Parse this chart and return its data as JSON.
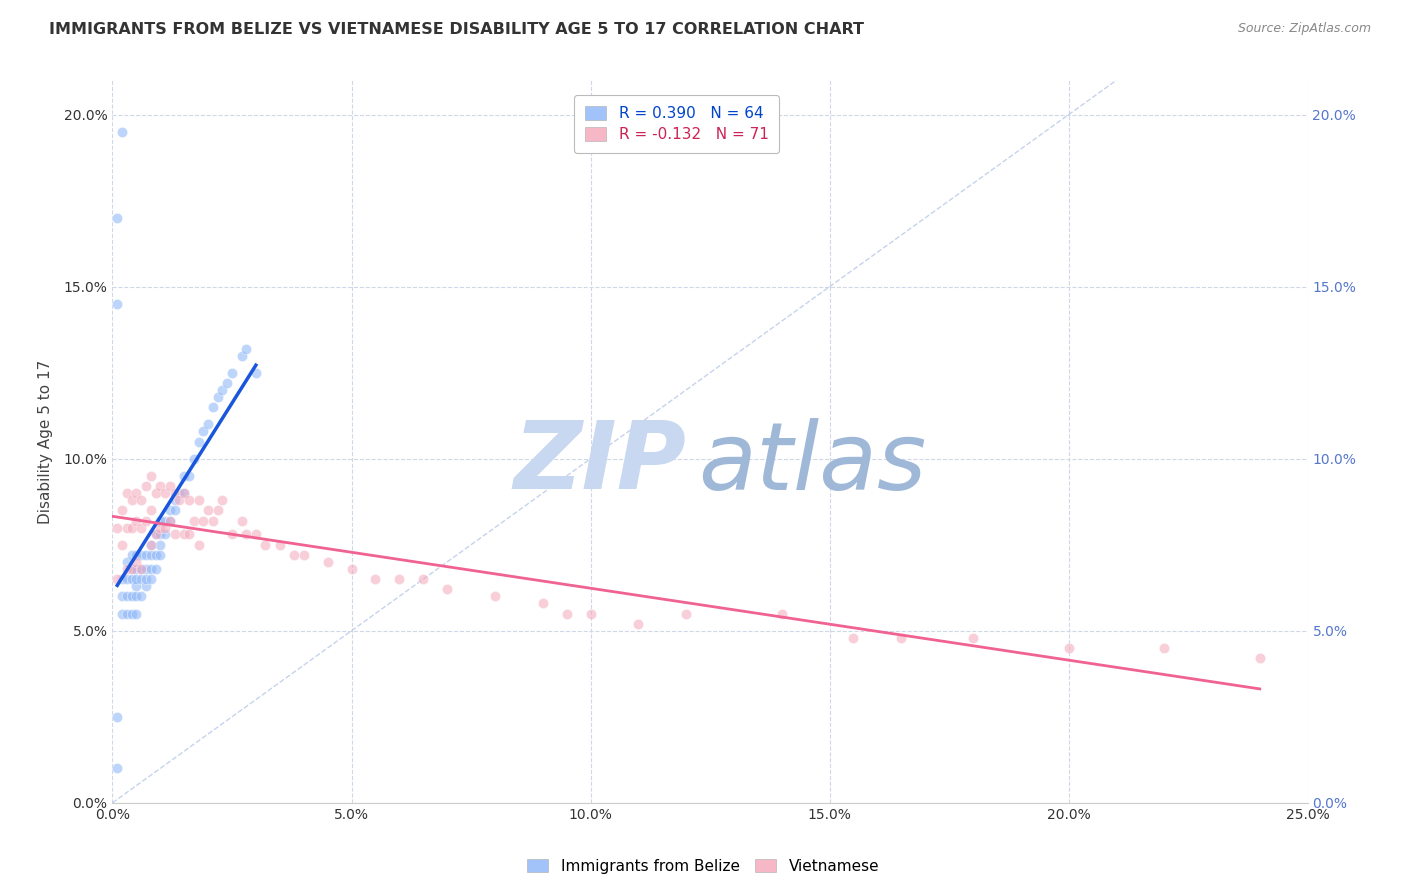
{
  "title": "IMMIGRANTS FROM BELIZE VS VIETNAMESE DISABILITY AGE 5 TO 17 CORRELATION CHART",
  "source": "Source: ZipAtlas.com",
  "ylabel": "Disability Age 5 to 17",
  "xlim": [
    0.0,
    0.25
  ],
  "ylim": [
    0.0,
    0.21
  ],
  "belize_R": 0.39,
  "belize_N": 64,
  "vietnamese_R": -0.132,
  "vietnamese_N": 71,
  "belize_color": "#8ab4f8",
  "vietnamese_color": "#f4a7b9",
  "belize_regression_color": "#1a56db",
  "vietnamese_regression_color": "#f06292",
  "diagonal_color": "#b8c8e8",
  "watermark_zip_color": "#c8d8f0",
  "watermark_atlas_color": "#a0b8d8",
  "background_color": "#ffffff",
  "grid_color": "#d0d8e8",
  "tick_color_left": "#333333",
  "tick_color_right": "#5577cc",
  "marker_size": 55,
  "marker_alpha": 0.55,
  "belize_x": [
    0.001,
    0.001,
    0.002,
    0.002,
    0.002,
    0.003,
    0.003,
    0.003,
    0.003,
    0.004,
    0.004,
    0.004,
    0.004,
    0.004,
    0.005,
    0.005,
    0.005,
    0.005,
    0.005,
    0.005,
    0.006,
    0.006,
    0.006,
    0.006,
    0.007,
    0.007,
    0.007,
    0.007,
    0.008,
    0.008,
    0.008,
    0.008,
    0.009,
    0.009,
    0.009,
    0.01,
    0.01,
    0.01,
    0.01,
    0.011,
    0.011,
    0.012,
    0.012,
    0.013,
    0.013,
    0.014,
    0.015,
    0.015,
    0.016,
    0.017,
    0.018,
    0.019,
    0.02,
    0.021,
    0.022,
    0.023,
    0.024,
    0.025,
    0.027,
    0.028,
    0.03,
    0.001,
    0.001,
    0.002
  ],
  "belize_y": [
    0.01,
    0.025,
    0.055,
    0.06,
    0.065,
    0.055,
    0.06,
    0.065,
    0.07,
    0.055,
    0.06,
    0.065,
    0.068,
    0.072,
    0.055,
    0.06,
    0.063,
    0.065,
    0.068,
    0.072,
    0.06,
    0.065,
    0.068,
    0.072,
    0.063,
    0.065,
    0.068,
    0.072,
    0.065,
    0.068,
    0.072,
    0.075,
    0.068,
    0.072,
    0.078,
    0.072,
    0.075,
    0.078,
    0.082,
    0.078,
    0.082,
    0.082,
    0.085,
    0.085,
    0.088,
    0.09,
    0.09,
    0.095,
    0.095,
    0.1,
    0.105,
    0.108,
    0.11,
    0.115,
    0.118,
    0.12,
    0.122,
    0.125,
    0.13,
    0.132,
    0.125,
    0.17,
    0.145,
    0.195
  ],
  "vietnamese_x": [
    0.001,
    0.001,
    0.002,
    0.002,
    0.003,
    0.003,
    0.003,
    0.004,
    0.004,
    0.004,
    0.005,
    0.005,
    0.005,
    0.006,
    0.006,
    0.006,
    0.007,
    0.007,
    0.008,
    0.008,
    0.008,
    0.009,
    0.009,
    0.01,
    0.01,
    0.011,
    0.011,
    0.012,
    0.012,
    0.013,
    0.013,
    0.014,
    0.015,
    0.015,
    0.016,
    0.016,
    0.017,
    0.018,
    0.018,
    0.019,
    0.02,
    0.021,
    0.022,
    0.023,
    0.025,
    0.027,
    0.028,
    0.03,
    0.032,
    0.035,
    0.038,
    0.04,
    0.045,
    0.05,
    0.055,
    0.06,
    0.065,
    0.07,
    0.08,
    0.09,
    0.095,
    0.1,
    0.11,
    0.12,
    0.14,
    0.155,
    0.165,
    0.18,
    0.2,
    0.22,
    0.24
  ],
  "vietnamese_y": [
    0.08,
    0.065,
    0.085,
    0.075,
    0.09,
    0.08,
    0.068,
    0.088,
    0.08,
    0.068,
    0.09,
    0.082,
    0.07,
    0.088,
    0.08,
    0.068,
    0.092,
    0.082,
    0.095,
    0.085,
    0.075,
    0.09,
    0.078,
    0.092,
    0.08,
    0.09,
    0.08,
    0.092,
    0.082,
    0.09,
    0.078,
    0.088,
    0.09,
    0.078,
    0.088,
    0.078,
    0.082,
    0.088,
    0.075,
    0.082,
    0.085,
    0.082,
    0.085,
    0.088,
    0.078,
    0.082,
    0.078,
    0.078,
    0.075,
    0.075,
    0.072,
    0.072,
    0.07,
    0.068,
    0.065,
    0.065,
    0.065,
    0.062,
    0.06,
    0.058,
    0.055,
    0.055,
    0.052,
    0.055,
    0.055,
    0.048,
    0.048,
    0.048,
    0.045,
    0.045,
    0.042
  ],
  "legend_label_belize": "R = 0.390   N = 64",
  "legend_label_vietnamese": "R = -0.132   N = 71",
  "legend_color_belize": "#0044cc",
  "legend_color_vietnamese": "#cc2255"
}
